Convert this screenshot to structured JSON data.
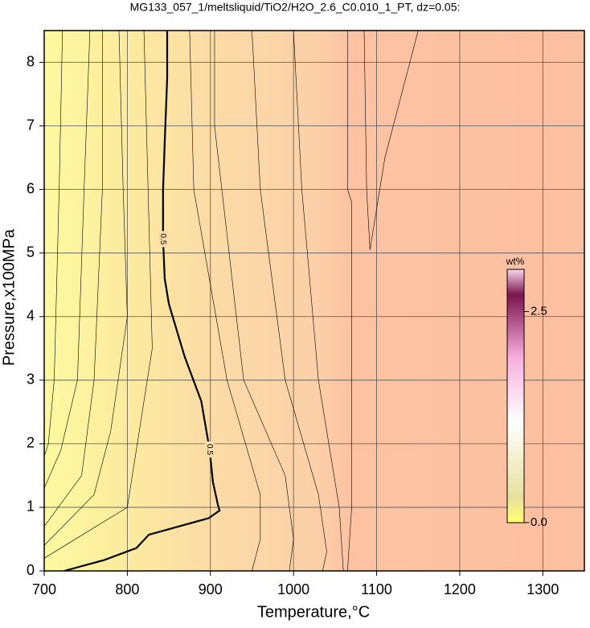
{
  "chart_data": {
    "type": "contour",
    "title": "MG133_057_1/meltsliquid/TiO2/H2O_2.6_C0.010_1_PT, dz=0.05:",
    "xlabel": "Temperature,°C",
    "ylabel": "Pressure,x100MPa",
    "xlim": [
      700,
      1350
    ],
    "ylim": [
      0,
      8.5
    ],
    "xticks": [
      700,
      800,
      900,
      1000,
      1100,
      1200,
      1300
    ],
    "yticks": [
      0,
      1,
      2,
      3,
      4,
      5,
      6,
      7,
      8
    ],
    "grid": true,
    "contours": [
      {
        "level": 0.5,
        "x": [
          724,
          772,
          811,
          826,
          898,
          911,
          909,
          903,
          899,
          889,
          869,
          850,
          845,
          843,
          843,
          845,
          848,
          848
        ],
        "y": [
          0,
          0.17,
          0.36,
          0.57,
          0.83,
          0.95,
          1.04,
          1.4,
          1.91,
          2.67,
          3.37,
          4.2,
          4.6,
          5.22,
          5.98,
          6.74,
          7.76,
          8.5
        ]
      },
      {
        "x": [
          722,
          718,
          712,
          705,
          700
        ],
        "y": [
          8.5,
          6,
          3,
          2,
          1.8
        ]
      },
      {
        "x": [
          755,
          748,
          740,
          720,
          700
        ],
        "y": [
          8.5,
          6,
          3,
          1.9,
          1.3
        ]
      },
      {
        "x": [
          770,
          770,
          760,
          745,
          700
        ],
        "y": [
          8.5,
          6,
          3,
          1.5,
          0.7
        ]
      },
      {
        "x": [
          790,
          795,
          800,
          780,
          760,
          700
        ],
        "y": [
          8.5,
          6,
          4,
          2.2,
          1.2,
          0.4
        ]
      },
      {
        "x": [
          820,
          825,
          830,
          800,
          700
        ],
        "y": [
          8.5,
          6,
          3.5,
          1,
          0.2
        ]
      },
      {
        "x": [
          875,
          880,
          920,
          960,
          960,
          950
        ],
        "y": [
          8.5,
          6,
          3,
          1.2,
          0.5,
          0
        ]
      },
      {
        "x": [
          905,
          905,
          940,
          990,
          1000,
          995
        ],
        "y": [
          8.5,
          7,
          3,
          1.5,
          0.5,
          0
        ]
      },
      {
        "x": [
          950,
          960,
          990,
          1030,
          1040,
          1035
        ],
        "y": [
          8.5,
          6,
          3,
          1.2,
          0.3,
          0
        ]
      },
      {
        "x": [
          1000,
          1010,
          1030,
          1055,
          1060
        ],
        "y": [
          8.5,
          6,
          3,
          1,
          0
        ]
      },
      {
        "x": [
          1065,
          1065,
          1070,
          1070,
          1070,
          1065
        ],
        "y": [
          8.5,
          6,
          5.8,
          3,
          1,
          0
        ]
      },
      {
        "x": [
          1085,
          1088,
          1092,
          1110,
          1150
        ],
        "y": [
          8.5,
          6,
          5.05,
          6.5,
          8.5
        ]
      }
    ],
    "colorbar": {
      "label": "wt%",
      "clim": [
        0,
        3
      ],
      "ticks": [
        {
          "value": 0,
          "label": "0.0"
        },
        2.5
      ]
    }
  }
}
